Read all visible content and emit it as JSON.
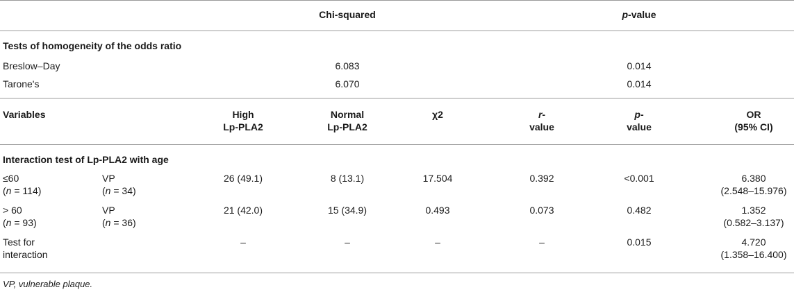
{
  "top_header": {
    "chi_squared": "Chi-squared",
    "p_value_italic": "p",
    "p_value_rest": "-value"
  },
  "homogeneity": {
    "title": "Tests of homogeneity of the odds ratio",
    "rows": [
      {
        "label": "Breslow–Day",
        "chi": "6.083",
        "p": "0.014"
      },
      {
        "label": "Tarone's",
        "chi": "6.070",
        "p": "0.014"
      }
    ]
  },
  "main_header": {
    "variables": "Variables",
    "high_1": "High",
    "high_2": "Lp-PLA2",
    "normal_1": "Normal",
    "normal_2": "Lp-PLA2",
    "chi2": "χ2",
    "r_italic": "r",
    "r_1_rest": "-",
    "r_2": "value",
    "p_italic": "p",
    "p_1_rest": "-",
    "p_2": "value",
    "or_1": "OR",
    "or_2": "(95% CI)"
  },
  "interaction": {
    "title": "Interaction test of Lp-PLA2 with age",
    "rows": [
      {
        "group": "≤60",
        "group_n_italic": "n",
        "group_n_rest": " = 114)",
        "group_n_open": "(",
        "sub": "VP",
        "sub_n_open": "(",
        "sub_n_italic": "n",
        "sub_n_rest": " = 34)",
        "high": "26 (49.1)",
        "normal": "8 (13.1)",
        "chi": "17.504",
        "r": "0.392",
        "p": "<0.001",
        "or": "6.380",
        "ci": "(2.548–15.976)"
      },
      {
        "group": "> 60",
        "group_n_italic": "n",
        "group_n_rest": " = 93)",
        "group_n_open": "(",
        "sub": "VP",
        "sub_n_open": "(",
        "sub_n_italic": "n",
        "sub_n_rest": " = 36)",
        "high": "21 (42.0)",
        "normal": "15 (34.9)",
        "chi": "0.493",
        "r": "0.073",
        "p": "0.482",
        "or": "1.352",
        "ci": "(0.582–3.137)"
      }
    ],
    "test_row": {
      "label_1": "Test for",
      "label_2": "interaction",
      "high": "–",
      "normal": "–",
      "chi": "–",
      "r": "–",
      "p": "0.015",
      "or": "4.720",
      "ci": "(1.358–16.400)"
    }
  },
  "footnote": "VP, vulnerable plaque."
}
